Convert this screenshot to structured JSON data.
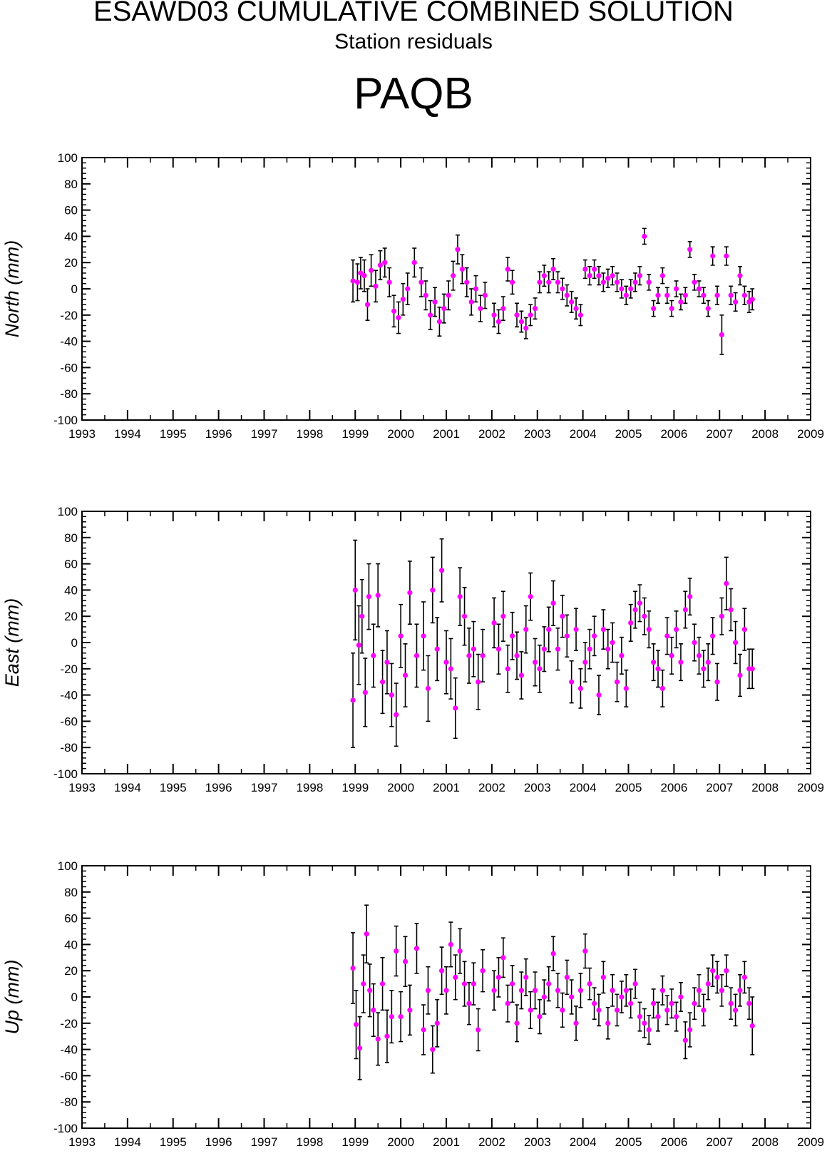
{
  "header": {
    "title": "ESAWD03 CUMULATIVE COMBINED SOLUTION",
    "subtitle": "Station residuals",
    "station": "PAQB"
  },
  "colors": {
    "point": "#ff00ff",
    "errorbar": "#000000",
    "axis": "#000000"
  },
  "chart_data": [
    {
      "type": "scatter",
      "ylabel": "North (mm)",
      "xlim": [
        1993,
        2009
      ],
      "ylim": [
        -100,
        100
      ],
      "xticks": [
        "1993",
        "1994",
        "1995",
        "1996",
        "1997",
        "1998",
        "1999",
        "2000",
        "2001",
        "2002",
        "2003",
        "2004",
        "2005",
        "2006",
        "2007",
        "2008",
        "2009"
      ],
      "yticks": [
        "100",
        "80",
        "60",
        "40",
        "20",
        "0",
        "-20",
        "-40",
        "-60",
        "-80",
        "-100"
      ],
      "error_bars": true,
      "x": [
        1998.95,
        1999.05,
        1999.12,
        1999.2,
        1999.27,
        1999.35,
        1999.45,
        1999.55,
        1999.65,
        1999.75,
        1999.85,
        1999.95,
        2000.05,
        2000.15,
        2000.3,
        2000.45,
        2000.55,
        2000.65,
        2000.75,
        2000.85,
        2000.95,
        2001.05,
        2001.15,
        2001.25,
        2001.35,
        2001.45,
        2001.55,
        2001.65,
        2001.75,
        2001.85,
        2002.05,
        2002.15,
        2002.25,
        2002.35,
        2002.45,
        2002.55,
        2002.65,
        2002.75,
        2002.85,
        2002.95,
        2003.05,
        2003.15,
        2003.25,
        2003.35,
        2003.45,
        2003.55,
        2003.65,
        2003.75,
        2003.85,
        2003.95,
        2004.05,
        2004.15,
        2004.25,
        2004.35,
        2004.45,
        2004.55,
        2004.65,
        2004.75,
        2004.85,
        2004.95,
        2005.05,
        2005.15,
        2005.25,
        2005.35,
        2005.45,
        2005.55,
        2005.65,
        2005.75,
        2005.85,
        2005.95,
        2006.05,
        2006.15,
        2006.25,
        2006.35,
        2006.45,
        2006.55,
        2006.65,
        2006.75,
        2006.85,
        2006.95,
        2007.05,
        2007.15,
        2007.25,
        2007.35,
        2007.45,
        2007.55,
        2007.65,
        2007.72
      ],
      "values": [
        6,
        5,
        12,
        10,
        -12,
        14,
        2,
        18,
        20,
        5,
        -17,
        -22,
        -8,
        0,
        20,
        5,
        -5,
        -20,
        -10,
        -25,
        -15,
        -5,
        10,
        30,
        15,
        5,
        -10,
        0,
        -15,
        -5,
        -20,
        -25,
        -15,
        15,
        5,
        -20,
        -25,
        -30,
        -20,
        -15,
        5,
        10,
        5,
        15,
        5,
        0,
        -5,
        -10,
        -15,
        -20,
        15,
        10,
        15,
        10,
        5,
        8,
        10,
        5,
        0,
        -5,
        0,
        5,
        10,
        40,
        5,
        -15,
        -5,
        10,
        -5,
        -15,
        0,
        -10,
        -5,
        30,
        5,
        0,
        -5,
        -15,
        25,
        -5,
        -35,
        25,
        -5,
        -10,
        10,
        -5,
        -10,
        -8
      ],
      "errors": [
        16,
        14,
        12,
        12,
        12,
        12,
        12,
        11,
        11,
        11,
        12,
        12,
        12,
        12,
        11,
        11,
        11,
        11,
        11,
        11,
        11,
        11,
        11,
        11,
        11,
        11,
        10,
        10,
        10,
        10,
        9,
        9,
        9,
        9,
        9,
        9,
        8,
        8,
        8,
        8,
        8,
        8,
        8,
        8,
        8,
        8,
        8,
        8,
        8,
        8,
        7,
        7,
        7,
        7,
        7,
        7,
        7,
        7,
        7,
        7,
        7,
        7,
        7,
        6,
        6,
        6,
        6,
        6,
        6,
        6,
        6,
        6,
        6,
        6,
        6,
        6,
        6,
        6,
        7,
        7,
        15,
        7,
        7,
        7,
        7,
        7,
        8,
        8
      ]
    },
    {
      "type": "scatter",
      "ylabel": "East (mm)",
      "xlim": [
        1993,
        2009
      ],
      "ylim": [
        -100,
        100
      ],
      "xticks": [
        "1993",
        "1994",
        "1995",
        "1996",
        "1997",
        "1998",
        "1999",
        "2000",
        "2001",
        "2002",
        "2003",
        "2004",
        "2005",
        "2006",
        "2007",
        "2008",
        "2009"
      ],
      "yticks": [
        "100",
        "80",
        "60",
        "40",
        "20",
        "0",
        "-20",
        "-40",
        "-60",
        "-80",
        "-100"
      ],
      "error_bars": true,
      "x": [
        1998.95,
        1999.0,
        1999.08,
        1999.15,
        1999.22,
        1999.3,
        1999.4,
        1999.5,
        1999.6,
        1999.7,
        1999.8,
        1999.9,
        2000.0,
        2000.1,
        2000.2,
        2000.35,
        2000.5,
        2000.6,
        2000.7,
        2000.8,
        2000.9,
        2001.0,
        2001.1,
        2001.2,
        2001.3,
        2001.4,
        2001.5,
        2001.6,
        2001.7,
        2001.8,
        2002.05,
        2002.15,
        2002.25,
        2002.35,
        2002.45,
        2002.55,
        2002.65,
        2002.75,
        2002.85,
        2002.95,
        2003.05,
        2003.15,
        2003.25,
        2003.35,
        2003.45,
        2003.55,
        2003.65,
        2003.75,
        2003.85,
        2003.95,
        2004.05,
        2004.15,
        2004.25,
        2004.35,
        2004.45,
        2004.55,
        2004.65,
        2004.75,
        2004.85,
        2004.95,
        2005.05,
        2005.15,
        2005.25,
        2005.35,
        2005.45,
        2005.55,
        2005.65,
        2005.75,
        2005.85,
        2005.95,
        2006.05,
        2006.15,
        2006.25,
        2006.35,
        2006.45,
        2006.55,
        2006.65,
        2006.75,
        2006.85,
        2006.95,
        2007.05,
        2007.15,
        2007.25,
        2007.35,
        2007.45,
        2007.55,
        2007.65,
        2007.72
      ],
      "values": [
        -44,
        40,
        -2,
        20,
        -38,
        35,
        -10,
        36,
        -30,
        -15,
        -40,
        -55,
        5,
        -25,
        38,
        -10,
        5,
        -35,
        40,
        -5,
        55,
        -15,
        -20,
        -50,
        35,
        20,
        -10,
        -5,
        -30,
        -10,
        15,
        -5,
        20,
        -20,
        5,
        -10,
        -25,
        10,
        35,
        -15,
        -20,
        -5,
        10,
        30,
        -5,
        20,
        5,
        -30,
        10,
        -35,
        -15,
        -5,
        5,
        -40,
        10,
        -5,
        0,
        -30,
        -10,
        -35,
        15,
        25,
        30,
        20,
        10,
        -15,
        -20,
        -35,
        5,
        -10,
        10,
        -15,
        25,
        35,
        0,
        -10,
        -20,
        -15,
        5,
        -30,
        20,
        45,
        25,
        0,
        -25,
        10,
        -20,
        -20
      ],
      "errors": [
        36,
        38,
        30,
        28,
        26,
        25,
        24,
        24,
        24,
        24,
        24,
        24,
        24,
        24,
        24,
        24,
        26,
        25,
        25,
        24,
        24,
        24,
        23,
        23,
        22,
        22,
        21,
        21,
        21,
        20,
        19,
        19,
        19,
        18,
        18,
        18,
        18,
        18,
        18,
        18,
        18,
        17,
        17,
        17,
        16,
        16,
        16,
        16,
        16,
        15,
        15,
        15,
        15,
        15,
        15,
        15,
        15,
        15,
        14,
        14,
        14,
        14,
        14,
        14,
        14,
        14,
        14,
        14,
        14,
        14,
        14,
        14,
        14,
        14,
        14,
        14,
        14,
        14,
        14,
        14,
        14,
        20,
        16,
        16,
        16,
        16,
        15,
        15
      ]
    },
    {
      "type": "scatter",
      "ylabel": "Up (mm)",
      "xlim": [
        1993,
        2009
      ],
      "ylim": [
        -100,
        100
      ],
      "xticks": [
        "1993",
        "1994",
        "1995",
        "1996",
        "1997",
        "1998",
        "1999",
        "2000",
        "2001",
        "2002",
        "2003",
        "2004",
        "2005",
        "2006",
        "2007",
        "2008",
        "2009"
      ],
      "yticks": [
        "100",
        "80",
        "60",
        "40",
        "20",
        "0",
        "-20",
        "-40",
        "-60",
        "-80",
        "-100"
      ],
      "error_bars": true,
      "x": [
        1998.95,
        1999.02,
        1999.1,
        1999.18,
        1999.25,
        1999.32,
        1999.4,
        1999.5,
        1999.6,
        1999.7,
        1999.8,
        1999.9,
        2000.0,
        2000.1,
        2000.2,
        2000.35,
        2000.5,
        2000.6,
        2000.7,
        2000.8,
        2000.9,
        2001.0,
        2001.1,
        2001.2,
        2001.3,
        2001.4,
        2001.5,
        2001.6,
        2001.7,
        2001.8,
        2002.05,
        2002.15,
        2002.25,
        2002.35,
        2002.45,
        2002.55,
        2002.65,
        2002.75,
        2002.85,
        2002.95,
        2003.05,
        2003.15,
        2003.25,
        2003.35,
        2003.45,
        2003.55,
        2003.65,
        2003.75,
        2003.85,
        2003.95,
        2004.05,
        2004.15,
        2004.25,
        2004.35,
        2004.45,
        2004.55,
        2004.65,
        2004.75,
        2004.85,
        2004.95,
        2005.05,
        2005.15,
        2005.25,
        2005.35,
        2005.45,
        2005.55,
        2005.65,
        2005.75,
        2005.85,
        2005.95,
        2006.05,
        2006.15,
        2006.25,
        2006.35,
        2006.45,
        2006.55,
        2006.65,
        2006.75,
        2006.85,
        2006.95,
        2007.05,
        2007.15,
        2007.25,
        2007.35,
        2007.45,
        2007.55,
        2007.65,
        2007.72
      ],
      "values": [
        22,
        -21,
        -39,
        10,
        48,
        5,
        -10,
        -32,
        10,
        -30,
        -15,
        35,
        -15,
        27,
        -10,
        37,
        -25,
        5,
        -40,
        -20,
        20,
        5,
        40,
        15,
        35,
        10,
        -5,
        10,
        -25,
        20,
        5,
        15,
        30,
        -5,
        10,
        -20,
        5,
        15,
        -10,
        5,
        -15,
        0,
        10,
        33,
        5,
        -10,
        15,
        0,
        -20,
        5,
        35,
        10,
        -5,
        -10,
        15,
        -20,
        5,
        -10,
        0,
        5,
        -5,
        10,
        -15,
        -20,
        -25,
        -5,
        -15,
        5,
        -10,
        -5,
        -15,
        0,
        -33,
        -25,
        -5,
        5,
        -10,
        10,
        20,
        15,
        5,
        20,
        -5,
        -10,
        5,
        15,
        -5,
        -22
      ],
      "errors": [
        27,
        26,
        24,
        22,
        22,
        20,
        20,
        20,
        20,
        20,
        20,
        19,
        19,
        19,
        19,
        19,
        19,
        18,
        18,
        18,
        18,
        18,
        17,
        17,
        17,
        17,
        16,
        16,
        16,
        16,
        15,
        15,
        15,
        14,
        14,
        14,
        14,
        14,
        14,
        14,
        13,
        13,
        13,
        13,
        13,
        13,
        13,
        13,
        13,
        13,
        13,
        12,
        12,
        12,
        12,
        12,
        12,
        12,
        12,
        12,
        11,
        11,
        11,
        11,
        11,
        11,
        11,
        11,
        11,
        11,
        11,
        11,
        14,
        13,
        12,
        12,
        12,
        12,
        12,
        12,
        12,
        12,
        12,
        12,
        12,
        12,
        12,
        22
      ]
    }
  ]
}
